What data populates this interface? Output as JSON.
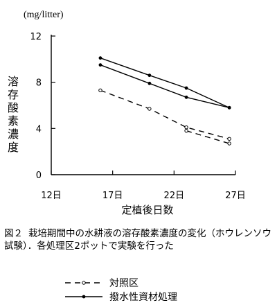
{
  "chart_data": {
    "type": "line",
    "unit": "(mg/litter)",
    "ylabel": "溶存酸素濃度",
    "xlabel": "定植後日数",
    "xlim": [
      12,
      27
    ],
    "ylim": [
      0,
      12
    ],
    "xticks": [
      "12日",
      "17日",
      "22日",
      "27日"
    ],
    "xtick_values": [
      12,
      17,
      22,
      27
    ],
    "yticks": [
      "0",
      "4",
      "8",
      "12"
    ],
    "ytick_values": [
      0,
      4,
      8,
      12
    ],
    "series": [
      {
        "name": "対照区",
        "style": "dashed",
        "lines": [
          {
            "x": [
              16,
              20,
              23,
              26.5
            ],
            "y": [
              7.3,
              5.7,
              4.1,
              3.1
            ]
          },
          {
            "x": [
              23,
              26.5
            ],
            "y": [
              3.8,
              2.7
            ]
          }
        ]
      },
      {
        "name": "撥水性資材処理",
        "style": "solid",
        "lines": [
          {
            "x": [
              16,
              20,
              23,
              26.5
            ],
            "y": [
              10.1,
              8.6,
              7.5,
              5.8
            ]
          },
          {
            "x": [
              16,
              20,
              23,
              26.5
            ],
            "y": [
              9.5,
              7.9,
              6.7,
              5.8
            ]
          }
        ]
      }
    ]
  },
  "caption": {
    "number": "図２",
    "text": "栽培期間中の水耕液の溶存酸素濃度の変化（ホウレンソウ試験）．各処理区2ポットで実験を行った"
  }
}
